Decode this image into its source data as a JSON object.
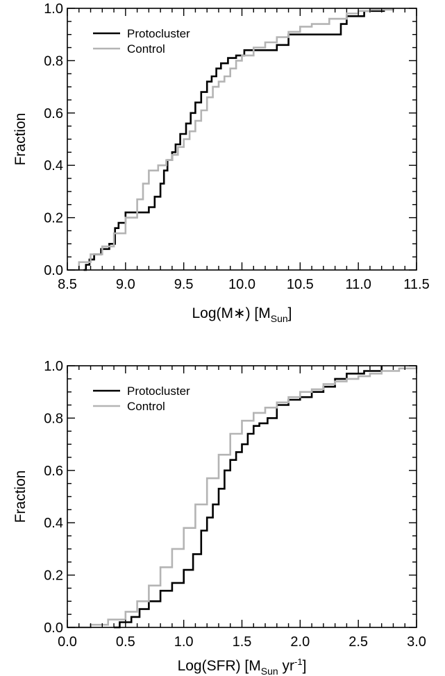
{
  "chart_data": [
    {
      "type": "line",
      "step": true,
      "xlabel": "Log(M∗) [M",
      "xlabel_sub": "Sun",
      "xlabel_suffix": "]",
      "ylabel": "Fraction",
      "xlim": [
        8.5,
        11.5
      ],
      "ylim": [
        0.0,
        1.0
      ],
      "xticks": [
        8.5,
        9.0,
        9.5,
        10.0,
        10.5,
        11.0,
        11.5
      ],
      "xtick_labels": [
        "8.5",
        "9.0",
        "9.5",
        "10.0",
        "10.5",
        "11.0",
        "11.5"
      ],
      "yticks": [
        0.0,
        0.2,
        0.4,
        0.6,
        0.8,
        1.0
      ],
      "ytick_labels": [
        "0.0",
        "0.2",
        "0.4",
        "0.6",
        "0.8",
        "1.0"
      ],
      "grid": false,
      "legend_position": "top-left",
      "series": [
        {
          "name": "Protocluster",
          "color": "#000000",
          "x": [
            8.64,
            8.66,
            8.69,
            8.73,
            8.79,
            8.86,
            8.91,
            8.94,
            9.0,
            9.05,
            9.2,
            9.25,
            9.3,
            9.33,
            9.36,
            9.4,
            9.43,
            9.47,
            9.52,
            9.56,
            9.6,
            9.65,
            9.7,
            9.74,
            9.78,
            9.82,
            9.88,
            9.95,
            10.02,
            10.3,
            10.4,
            10.85,
            10.9,
            11.05,
            11.22
          ],
          "y": [
            0.0,
            0.02,
            0.04,
            0.06,
            0.08,
            0.1,
            0.16,
            0.18,
            0.22,
            0.22,
            0.24,
            0.28,
            0.33,
            0.38,
            0.42,
            0.45,
            0.48,
            0.52,
            0.56,
            0.6,
            0.64,
            0.68,
            0.72,
            0.74,
            0.77,
            0.79,
            0.81,
            0.82,
            0.84,
            0.86,
            0.9,
            0.94,
            0.97,
            0.99,
            1.0
          ]
        },
        {
          "name": "Control",
          "color": "#b4b4b4",
          "x": [
            8.5,
            8.6,
            8.7,
            8.8,
            8.9,
            9.0,
            9.1,
            9.15,
            9.2,
            9.28,
            9.35,
            9.4,
            9.45,
            9.5,
            9.55,
            9.6,
            9.65,
            9.7,
            9.75,
            9.8,
            9.85,
            9.9,
            9.95,
            10.0,
            10.1,
            10.2,
            10.3,
            10.4,
            10.5,
            10.6,
            10.75,
            10.9,
            11.0,
            11.1,
            11.3
          ],
          "y": [
            0.0,
            0.03,
            0.06,
            0.09,
            0.14,
            0.2,
            0.27,
            0.33,
            0.38,
            0.4,
            0.42,
            0.44,
            0.47,
            0.5,
            0.53,
            0.57,
            0.61,
            0.66,
            0.7,
            0.72,
            0.74,
            0.77,
            0.8,
            0.82,
            0.85,
            0.87,
            0.89,
            0.91,
            0.93,
            0.94,
            0.96,
            0.98,
            0.99,
            0.995,
            1.0
          ]
        }
      ]
    },
    {
      "type": "line",
      "step": true,
      "xlabel": "Log(SFR) [M",
      "xlabel_sub": "Sun",
      "xlabel_mid": " yr",
      "xlabel_sup": "-1",
      "xlabel_suffix": "]",
      "ylabel": "Fraction",
      "xlim": [
        0.0,
        3.0
      ],
      "ylim": [
        0.0,
        1.0
      ],
      "xticks": [
        0.0,
        0.5,
        1.0,
        1.5,
        2.0,
        2.5,
        3.0
      ],
      "xtick_labels": [
        "0.0",
        "0.5",
        "1.0",
        "1.5",
        "2.0",
        "2.5",
        "3.0"
      ],
      "yticks": [
        0.0,
        0.2,
        0.4,
        0.6,
        0.8,
        1.0
      ],
      "ytick_labels": [
        "0.0",
        "0.2",
        "0.4",
        "0.6",
        "0.8",
        "1.0"
      ],
      "grid": false,
      "legend_position": "top-left",
      "series": [
        {
          "name": "Protocluster",
          "color": "#000000",
          "x": [
            0.4,
            0.45,
            0.55,
            0.62,
            0.7,
            0.8,
            0.9,
            1.0,
            1.08,
            1.15,
            1.2,
            1.25,
            1.3,
            1.35,
            1.4,
            1.45,
            1.5,
            1.55,
            1.6,
            1.65,
            1.72,
            1.8,
            1.9,
            2.0,
            2.1,
            2.2,
            2.3,
            2.4,
            2.55,
            2.7
          ],
          "y": [
            0.0,
            0.02,
            0.04,
            0.07,
            0.1,
            0.14,
            0.17,
            0.22,
            0.28,
            0.37,
            0.42,
            0.47,
            0.53,
            0.6,
            0.64,
            0.67,
            0.7,
            0.74,
            0.77,
            0.78,
            0.8,
            0.85,
            0.87,
            0.88,
            0.9,
            0.92,
            0.95,
            0.97,
            0.98,
            1.0
          ]
        },
        {
          "name": "Control",
          "color": "#b4b4b4",
          "x": [
            0.0,
            0.2,
            0.35,
            0.5,
            0.6,
            0.7,
            0.8,
            0.9,
            1.0,
            1.1,
            1.2,
            1.3,
            1.4,
            1.5,
            1.6,
            1.7,
            1.8,
            1.9,
            2.0,
            2.1,
            2.2,
            2.3,
            2.4,
            2.5,
            2.6,
            2.7,
            2.85,
            3.0
          ],
          "y": [
            0.0,
            0.01,
            0.03,
            0.06,
            0.1,
            0.16,
            0.23,
            0.3,
            0.38,
            0.47,
            0.57,
            0.66,
            0.74,
            0.79,
            0.82,
            0.84,
            0.86,
            0.88,
            0.9,
            0.91,
            0.93,
            0.94,
            0.95,
            0.96,
            0.97,
            0.98,
            0.99,
            1.0
          ]
        }
      ]
    }
  ]
}
